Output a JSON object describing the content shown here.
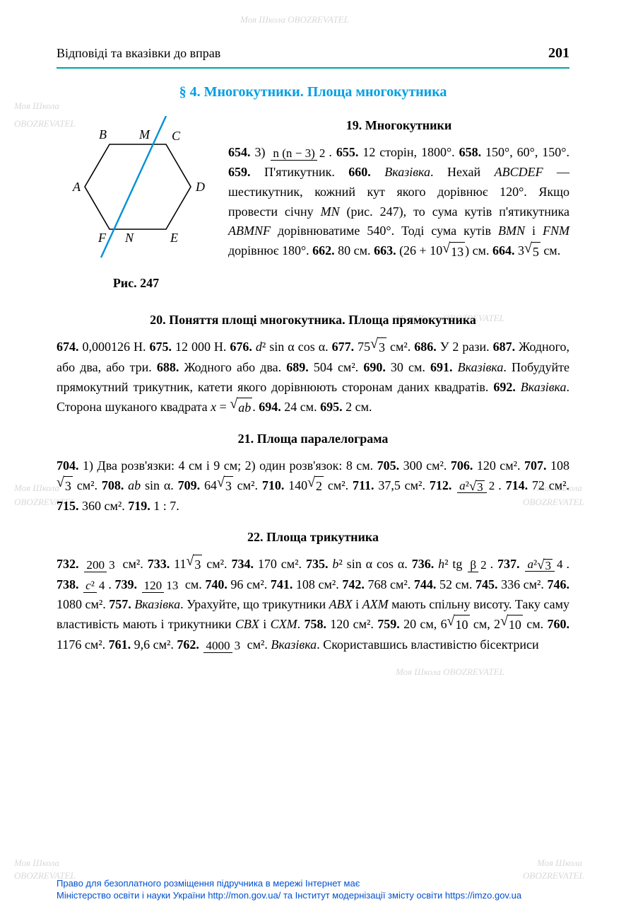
{
  "page_number": "201",
  "header_title": "Відповіді та вказівки до вправ",
  "chapter_title": "§ 4. Многокутники. Площа многокутника",
  "watermark_text_1": "Моя Школа",
  "watermark_text_2": "OBOZREVATEL",
  "figure": {
    "caption": "Рис. 247",
    "labels": {
      "A": "A",
      "B": "B",
      "C": "C",
      "D": "D",
      "E": "E",
      "F": "F",
      "M": "M",
      "N": "N"
    },
    "line_color": "#0090d8",
    "stroke": "#000",
    "stroke_width": 1.4
  },
  "sections": [
    {
      "title": "19. Многокутники",
      "answers": [
        {
          "n": "654",
          "t": "3) {frac:n (n − 3)|2}."
        },
        {
          "n": "655",
          "t": "12 сторін, 1800°."
        },
        {
          "n": "658",
          "t": "150°, 60°, 150°."
        },
        {
          "n": "659",
          "t": "П'ятикутник."
        },
        {
          "n": "660",
          "t": "{i:Вказівка}. Нехай {i:ABCDEF} — шестикутник, кожний кут якого дорівнює 120°. Якщо провести січну {i:MN} (рис. 247), то сума кутів п'ятикутника {i:ABMNF} дорівнюватиме 540°. Тоді сума кутів {i:BMN} і {i:FNM} дорівнює 180°."
        },
        {
          "n": "662",
          "t": "80 см."
        },
        {
          "n": "663",
          "t": "(26 + 10{sqrt:13}) см."
        },
        {
          "n": "664",
          "t": "3{sqrt:5} см."
        }
      ]
    },
    {
      "title": "20. Поняття площі многокутника. Площа прямокутника",
      "answers": [
        {
          "n": "674",
          "t": "0,000126 Н."
        },
        {
          "n": "675",
          "t": "12 000 Н."
        },
        {
          "n": "676",
          "t": "{i:d}² sin α cos α."
        },
        {
          "n": "677",
          "t": "75{sqrt:3} см²."
        },
        {
          "n": "686",
          "t": "У 2 рази."
        },
        {
          "n": "687",
          "t": "Жодного, або два, або три."
        },
        {
          "n": "688",
          "t": "Жодного або два."
        },
        {
          "n": "689",
          "t": "504 см²."
        },
        {
          "n": "690",
          "t": "30 см."
        },
        {
          "n": "691",
          "t": "{i:Вказівка}. Побудуйте прямокутний трикутник, катети якого дорівнюють сторонам даних квадратів."
        },
        {
          "n": "692",
          "t": "{i:Вказівка}. Сторона шуканого квадрата {i:x} = {sqrt:{i:ab}}."
        },
        {
          "n": "694",
          "t": "24 см."
        },
        {
          "n": "695",
          "t": "2 см."
        }
      ]
    },
    {
      "title": "21. Площа паралелограма",
      "answers": [
        {
          "n": "704",
          "t": "1) Два розв'язки: 4 см і 9 см; 2) один розв'язок: 8 см."
        },
        {
          "n": "705",
          "t": "300 см²."
        },
        {
          "n": "706",
          "t": "120 см²."
        },
        {
          "n": "707",
          "t": "108{sqrt:3} см²."
        },
        {
          "n": "708",
          "t": "{i:ab} sin α."
        },
        {
          "n": "709",
          "t": "64{sqrt:3} см²."
        },
        {
          "n": "710",
          "t": "140{sqrt:2} см²."
        },
        {
          "n": "711",
          "t": "37,5 см²."
        },
        {
          "n": "712",
          "t": "{frac:{i:a}²{sqrt:3}|2}."
        },
        {
          "n": "714",
          "t": "72 см²."
        },
        {
          "n": "715",
          "t": "360 см²."
        },
        {
          "n": "719",
          "t": "1 : 7."
        }
      ]
    },
    {
      "title": "22. Площа трикутника",
      "answers": [
        {
          "n": "732",
          "t": "{frac:200|3} см²."
        },
        {
          "n": "733",
          "t": "11{sqrt:3} см²."
        },
        {
          "n": "734",
          "t": "170 см²."
        },
        {
          "n": "735",
          "t": "{i:b}² sin α cos α."
        },
        {
          "n": "736",
          "t": "{i:h}² tg {frac:β|2}."
        },
        {
          "n": "737",
          "t": "{frac:{i:a}²{sqrt:3}|4}."
        },
        {
          "n": "738",
          "t": "{frac:{i:c}²|4}."
        },
        {
          "n": "739",
          "t": "{frac:120|13} см."
        },
        {
          "n": "740",
          "t": "96 см²."
        },
        {
          "n": "741",
          "t": "108 см²."
        },
        {
          "n": "742",
          "t": "768 см²."
        },
        {
          "n": "744",
          "t": "52 см."
        },
        {
          "n": "745",
          "t": "336 см²."
        },
        {
          "n": "746",
          "t": "1080 см²."
        },
        {
          "n": "757",
          "t": "{i:Вказівка}. Урахуйте, що трикутники {i:ABX} і {i:AXM} мають спільну висоту. Таку саму властивість мають і трикутники {i:CBX} і {i:CXM}."
        },
        {
          "n": "758",
          "t": "120 см²."
        },
        {
          "n": "759",
          "t": "20 см, 6{sqrt:10} см, 2{sqrt:10} см."
        },
        {
          "n": "760",
          "t": "1176 см²."
        },
        {
          "n": "761",
          "t": "9,6 см²."
        },
        {
          "n": "762",
          "t": "{frac:4000|3} см². {i:Вказівка}. Скориставшись властивістю бісектриси"
        }
      ]
    }
  ],
  "footer": {
    "line1": "Право для безоплатного розміщення підручника в мережі Інтернет має",
    "line2": "Міністерство освіти і науки України http://mon.gov.ua/ та Інститут модернізації змісту освіти https://imzo.gov.ua"
  }
}
